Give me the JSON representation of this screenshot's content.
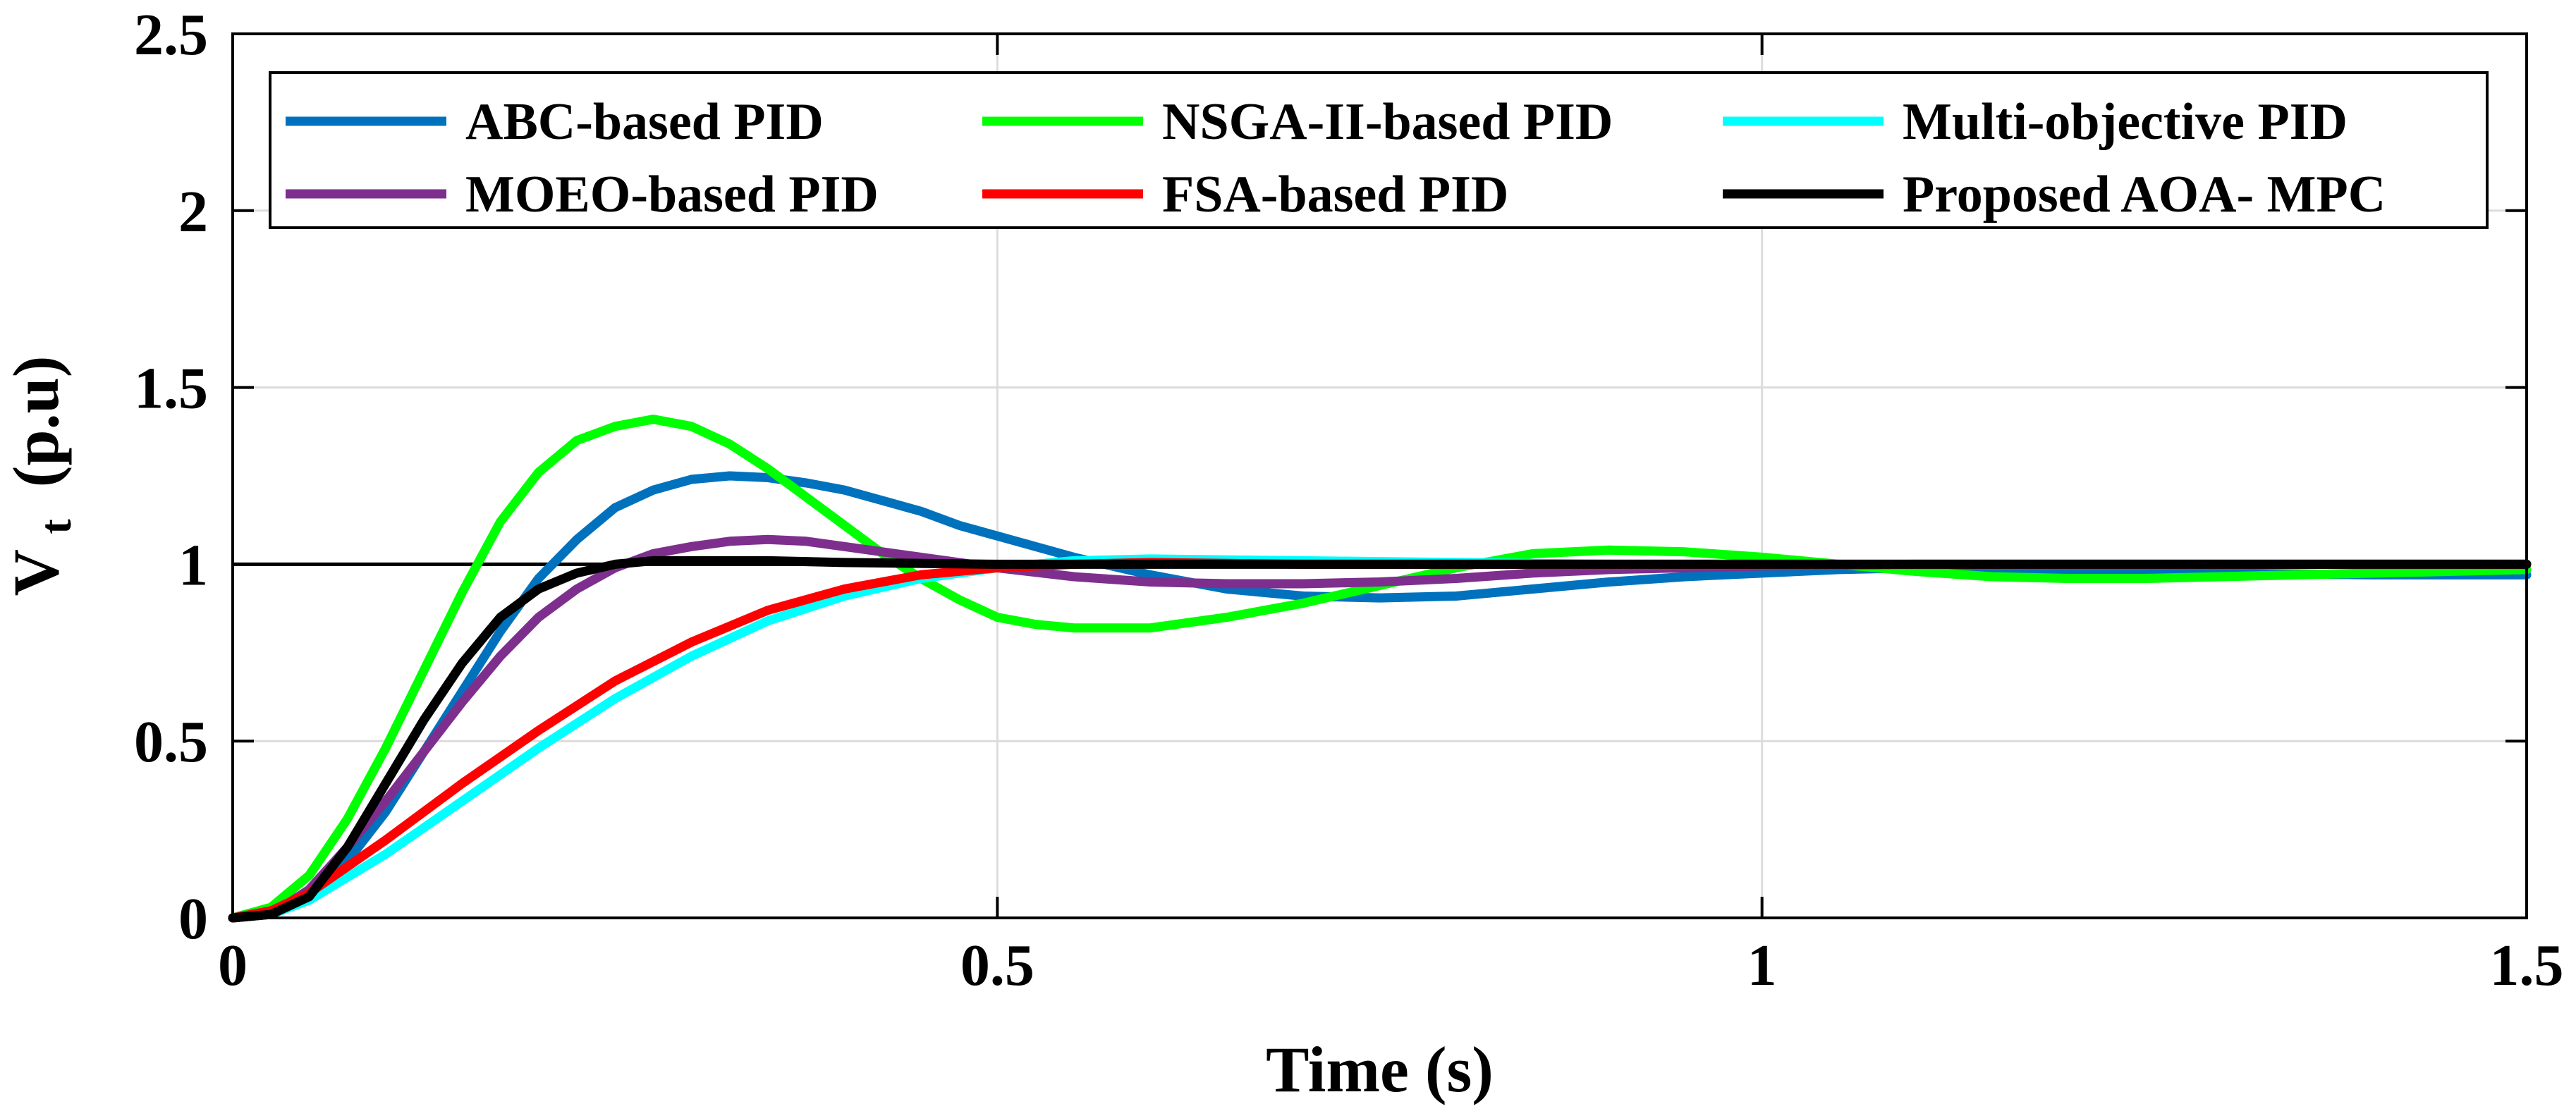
{
  "chart_data": {
    "type": "line",
    "title": "",
    "xlabel": "Time (s)",
    "ylabel_main": "V",
    "ylabel_sub": "t",
    "ylabel_unit": "(p.u)",
    "xlim": [
      0,
      1.5
    ],
    "ylim": [
      0,
      2.5
    ],
    "xticks": [
      0,
      0.5,
      1,
      1.5
    ],
    "xtick_labels": [
      "0",
      "0.5",
      "1",
      "1.5"
    ],
    "yticks": [
      0,
      0.5,
      1,
      1.5,
      2,
      2.5
    ],
    "ytick_labels": [
      "0",
      "0.5",
      "1",
      "1.5",
      "2",
      "2.5"
    ],
    "grid": true,
    "legend_position": "top",
    "reference_line": {
      "y": 1,
      "color": "#000000"
    },
    "series": [
      {
        "name": "ABC-based PID",
        "color": "#0072BD",
        "x": [
          0,
          0.025,
          0.05,
          0.075,
          0.1,
          0.125,
          0.15,
          0.175,
          0.2,
          0.225,
          0.25,
          0.275,
          0.3,
          0.325,
          0.35,
          0.375,
          0.4,
          0.425,
          0.45,
          0.475,
          0.5,
          0.55,
          0.6,
          0.65,
          0.7,
          0.75,
          0.8,
          0.85,
          0.9,
          0.95,
          1.0,
          1.05,
          1.1,
          1.2,
          1.3,
          1.4,
          1.5
        ],
        "y": [
          0,
          0.01,
          0.06,
          0.16,
          0.3,
          0.47,
          0.64,
          0.81,
          0.96,
          1.07,
          1.16,
          1.21,
          1.24,
          1.25,
          1.245,
          1.23,
          1.21,
          1.18,
          1.15,
          1.11,
          1.08,
          1.02,
          0.97,
          0.93,
          0.91,
          0.905,
          0.91,
          0.93,
          0.95,
          0.965,
          0.975,
          0.985,
          0.99,
          0.985,
          0.975,
          0.97,
          0.97
        ]
      },
      {
        "name": "NSGA-II-based PID",
        "color": "#00FF00",
        "x": [
          0,
          0.025,
          0.05,
          0.075,
          0.1,
          0.125,
          0.15,
          0.175,
          0.2,
          0.225,
          0.25,
          0.275,
          0.3,
          0.325,
          0.35,
          0.375,
          0.4,
          0.425,
          0.45,
          0.475,
          0.5,
          0.525,
          0.55,
          0.575,
          0.6,
          0.65,
          0.7,
          0.75,
          0.8,
          0.85,
          0.9,
          0.95,
          1.0,
          1.05,
          1.1,
          1.15,
          1.2,
          1.25,
          1.3,
          1.4,
          1.5
        ],
        "y": [
          0,
          0.03,
          0.12,
          0.28,
          0.48,
          0.7,
          0.92,
          1.12,
          1.26,
          1.35,
          1.39,
          1.41,
          1.39,
          1.34,
          1.27,
          1.19,
          1.11,
          1.03,
          0.96,
          0.9,
          0.85,
          0.83,
          0.82,
          0.82,
          0.82,
          0.85,
          0.89,
          0.94,
          0.99,
          1.03,
          1.04,
          1.035,
          1.02,
          1.0,
          0.98,
          0.965,
          0.96,
          0.96,
          0.965,
          0.975,
          0.985
        ]
      },
      {
        "name": "Multi-objective PID",
        "color": "#00FFFF",
        "x": [
          0,
          0.025,
          0.05,
          0.1,
          0.15,
          0.2,
          0.25,
          0.3,
          0.35,
          0.4,
          0.45,
          0.5,
          0.55,
          0.6,
          0.7,
          0.8,
          0.9,
          1.0,
          1.1,
          1.2,
          1.3,
          1.4,
          1.5
        ],
        "y": [
          0,
          0.01,
          0.05,
          0.18,
          0.33,
          0.48,
          0.62,
          0.74,
          0.84,
          0.91,
          0.96,
          0.99,
          1.01,
          1.015,
          1.01,
          1.005,
          1.0,
          1.0,
          1.0,
          1.0,
          1.0,
          1.0,
          1.0
        ]
      },
      {
        "name": "MOEO-based PID",
        "color": "#7E2F8E",
        "x": [
          0,
          0.025,
          0.05,
          0.075,
          0.1,
          0.125,
          0.15,
          0.175,
          0.2,
          0.225,
          0.25,
          0.275,
          0.3,
          0.325,
          0.35,
          0.375,
          0.4,
          0.45,
          0.5,
          0.55,
          0.6,
          0.65,
          0.7,
          0.75,
          0.8,
          0.85,
          0.9,
          1.0,
          1.1,
          1.2,
          1.3,
          1.4,
          1.5
        ],
        "y": [
          0,
          0.01,
          0.08,
          0.2,
          0.33,
          0.47,
          0.61,
          0.74,
          0.85,
          0.93,
          0.99,
          1.03,
          1.05,
          1.065,
          1.07,
          1.065,
          1.05,
          1.02,
          0.99,
          0.965,
          0.95,
          0.945,
          0.945,
          0.95,
          0.96,
          0.975,
          0.985,
          0.995,
          1.0,
          1.0,
          1.0,
          1.0,
          1.0
        ]
      },
      {
        "name": "FSA-based PID",
        "color": "#FF0000",
        "x": [
          0,
          0.025,
          0.05,
          0.1,
          0.15,
          0.2,
          0.25,
          0.3,
          0.35,
          0.4,
          0.45,
          0.5,
          0.55,
          0.6,
          0.7,
          0.8,
          0.9,
          1.0,
          1.1,
          1.2,
          1.3,
          1.4,
          1.5
        ],
        "y": [
          0,
          0.02,
          0.07,
          0.22,
          0.38,
          0.53,
          0.67,
          0.78,
          0.87,
          0.93,
          0.97,
          0.99,
          1.0,
          1.005,
          1.0,
          1.0,
          1.0,
          1.0,
          1.0,
          1.0,
          1.0,
          1.0,
          1.0
        ]
      },
      {
        "name": "Proposed AOA- MPC",
        "color": "#000000",
        "x": [
          0,
          0.025,
          0.05,
          0.075,
          0.1,
          0.125,
          0.15,
          0.175,
          0.2,
          0.225,
          0.25,
          0.275,
          0.3,
          0.35,
          0.4,
          0.5,
          0.6,
          0.8,
          1.0,
          1.2,
          1.5
        ],
        "y": [
          0,
          0.01,
          0.06,
          0.2,
          0.38,
          0.56,
          0.72,
          0.85,
          0.93,
          0.975,
          1.0,
          1.01,
          1.01,
          1.01,
          1.005,
          1.0,
          1.0,
          1.0,
          1.0,
          1.0,
          1.0
        ]
      }
    ]
  }
}
